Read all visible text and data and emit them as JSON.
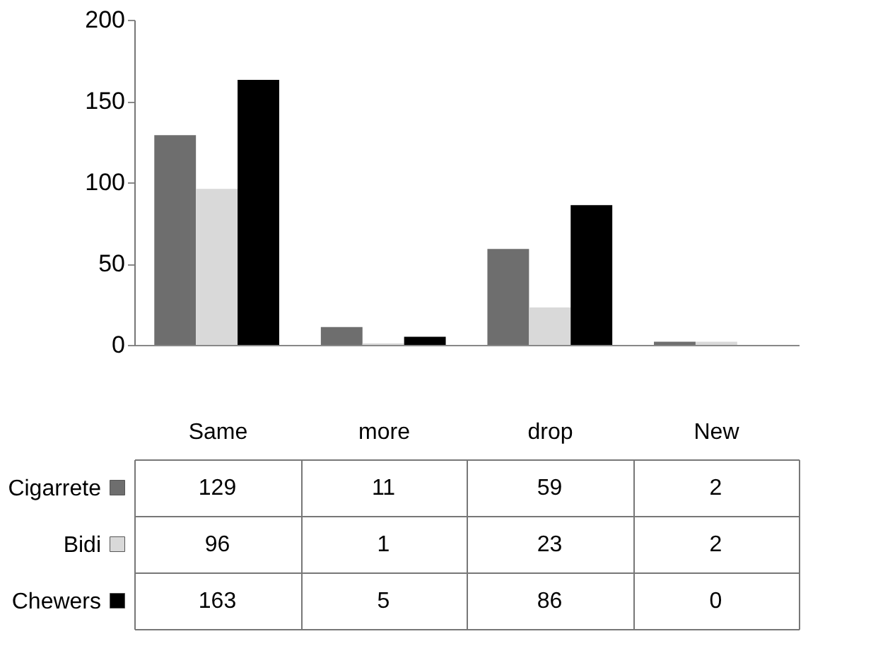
{
  "chart_data": {
    "type": "bar",
    "categories": [
      "Same",
      "more",
      "drop",
      "New"
    ],
    "series": [
      {
        "name": "Cigarrete",
        "color": "#6e6e6e",
        "values": [
          129,
          11,
          59,
          2
        ]
      },
      {
        "name": "Bidi",
        "color": "#d9d9d9",
        "values": [
          96,
          1,
          23,
          2
        ]
      },
      {
        "name": "Chewers",
        "color": "#000000",
        "values": [
          163,
          5,
          86,
          0
        ]
      }
    ],
    "ylim": [
      0,
      200
    ],
    "yticks": [
      0,
      50,
      100,
      150,
      200
    ],
    "grid": false,
    "legend": "bottom left",
    "data_labels": true
  }
}
